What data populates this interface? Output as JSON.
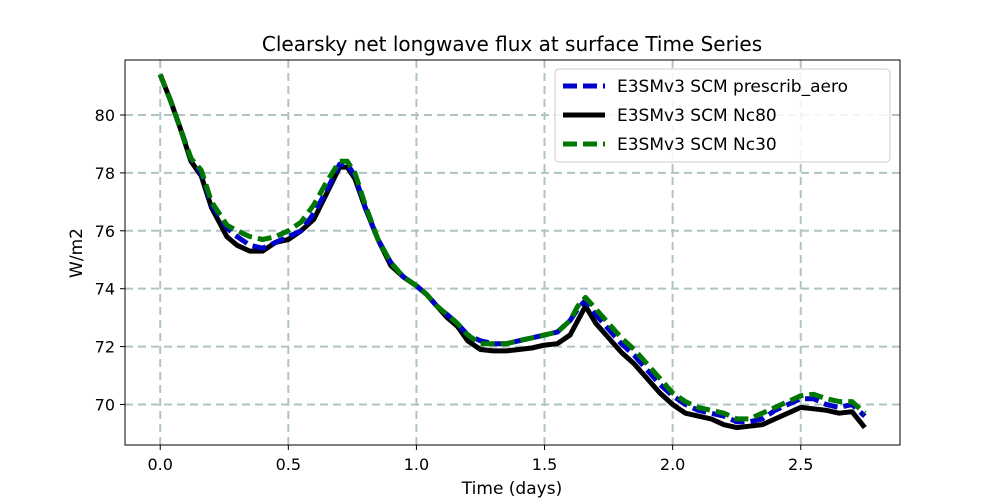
{
  "chart_data": {
    "type": "line",
    "title": "Clearsky net longwave flux at surface Time Series",
    "xlabel": "Time (days)",
    "ylabel": "W/m2",
    "xlim": [
      -0.1375,
      2.8875
    ],
    "ylim": [
      68.6,
      81.9
    ],
    "xticks": [
      0.0,
      0.5,
      1.0,
      1.5,
      2.0,
      2.5
    ],
    "xtick_labels": [
      "0.0",
      "0.5",
      "1.0",
      "1.5",
      "2.0",
      "2.5"
    ],
    "yticks": [
      70,
      72,
      74,
      76,
      78,
      80
    ],
    "ytick_labels": [
      "70",
      "72",
      "74",
      "76",
      "78",
      "80"
    ],
    "grid": true,
    "legend_position": "top-right",
    "colors": {
      "prescrib": "#0000cc",
      "nc80": "#000000",
      "nc30": "#007700",
      "grid": "#b0c4c4"
    },
    "series": [
      {
        "name": "E3SMv3 SCM prescrib_aero",
        "style": "dashed",
        "color": "#0000cc",
        "x": [
          0.0,
          0.04,
          0.08,
          0.12,
          0.16,
          0.2,
          0.23,
          0.26,
          0.3,
          0.35,
          0.4,
          0.45,
          0.5,
          0.55,
          0.6,
          0.65,
          0.7,
          0.73,
          0.76,
          0.8,
          0.85,
          0.9,
          0.95,
          1.0,
          1.04,
          1.08,
          1.12,
          1.16,
          1.2,
          1.25,
          1.3,
          1.35,
          1.4,
          1.45,
          1.5,
          1.55,
          1.6,
          1.63,
          1.66,
          1.7,
          1.75,
          1.8,
          1.85,
          1.9,
          1.95,
          2.0,
          2.05,
          2.1,
          2.15,
          2.2,
          2.25,
          2.3,
          2.35,
          2.4,
          2.45,
          2.5,
          2.55,
          2.6,
          2.65,
          2.7,
          2.75
        ],
        "values": [
          81.4,
          80.5,
          79.5,
          78.5,
          78.0,
          76.9,
          76.5,
          76.1,
          75.8,
          75.5,
          75.4,
          75.6,
          75.8,
          76.0,
          76.6,
          77.4,
          78.3,
          78.3,
          77.9,
          76.8,
          75.7,
          74.9,
          74.4,
          74.1,
          73.8,
          73.4,
          73.1,
          72.8,
          72.4,
          72.2,
          72.1,
          72.1,
          72.2,
          72.3,
          72.4,
          72.5,
          72.9,
          73.3,
          73.6,
          73.1,
          72.6,
          72.1,
          71.7,
          71.2,
          70.7,
          70.3,
          70.0,
          69.8,
          69.7,
          69.6,
          69.4,
          69.4,
          69.5,
          69.8,
          70.0,
          70.2,
          70.2,
          70.0,
          69.9,
          70.0,
          69.6
        ]
      },
      {
        "name": "E3SMv3 SCM Nc80",
        "style": "solid",
        "color": "#000000",
        "x": [
          0.0,
          0.04,
          0.08,
          0.12,
          0.16,
          0.2,
          0.23,
          0.26,
          0.3,
          0.35,
          0.4,
          0.45,
          0.5,
          0.55,
          0.6,
          0.65,
          0.7,
          0.73,
          0.76,
          0.8,
          0.85,
          0.9,
          0.95,
          1.0,
          1.04,
          1.08,
          1.12,
          1.16,
          1.2,
          1.25,
          1.3,
          1.35,
          1.4,
          1.45,
          1.5,
          1.55,
          1.6,
          1.63,
          1.66,
          1.7,
          1.75,
          1.8,
          1.85,
          1.9,
          1.95,
          2.0,
          2.05,
          2.1,
          2.15,
          2.2,
          2.25,
          2.3,
          2.35,
          2.4,
          2.45,
          2.5,
          2.55,
          2.6,
          2.65,
          2.7,
          2.75
        ],
        "values": [
          81.4,
          80.5,
          79.5,
          78.4,
          77.9,
          76.8,
          76.3,
          75.8,
          75.5,
          75.3,
          75.3,
          75.6,
          75.7,
          76.0,
          76.4,
          77.3,
          78.2,
          78.2,
          77.8,
          76.8,
          75.7,
          74.8,
          74.4,
          74.1,
          73.8,
          73.4,
          73.0,
          72.7,
          72.2,
          71.9,
          71.85,
          71.85,
          71.9,
          71.95,
          72.05,
          72.1,
          72.4,
          72.9,
          73.4,
          72.8,
          72.3,
          71.8,
          71.4,
          70.9,
          70.4,
          70.0,
          69.7,
          69.6,
          69.5,
          69.3,
          69.2,
          69.25,
          69.3,
          69.5,
          69.7,
          69.9,
          69.85,
          69.8,
          69.7,
          69.75,
          69.2
        ]
      },
      {
        "name": "E3SMv3 SCM Nc30",
        "style": "dashed",
        "color": "#007700",
        "x": [
          0.0,
          0.04,
          0.08,
          0.12,
          0.16,
          0.2,
          0.23,
          0.26,
          0.3,
          0.35,
          0.4,
          0.45,
          0.5,
          0.55,
          0.6,
          0.65,
          0.7,
          0.73,
          0.76,
          0.8,
          0.85,
          0.9,
          0.95,
          1.0,
          1.04,
          1.08,
          1.12,
          1.16,
          1.2,
          1.25,
          1.3,
          1.35,
          1.4,
          1.45,
          1.5,
          1.55,
          1.6,
          1.63,
          1.66,
          1.7,
          1.75,
          1.8,
          1.85,
          1.9,
          1.95,
          2.0,
          2.05,
          2.1,
          2.15,
          2.2,
          2.25,
          2.3,
          2.35,
          2.4,
          2.45,
          2.5,
          2.55,
          2.6,
          2.65,
          2.7,
          2.75
        ],
        "values": [
          81.4,
          80.5,
          79.5,
          78.5,
          78.1,
          77.0,
          76.6,
          76.2,
          76.0,
          75.8,
          75.7,
          75.8,
          76.0,
          76.3,
          76.9,
          77.7,
          78.4,
          78.4,
          78.0,
          76.9,
          75.7,
          74.9,
          74.4,
          74.1,
          73.8,
          73.4,
          73.1,
          72.8,
          72.4,
          72.1,
          72.1,
          72.1,
          72.2,
          72.3,
          72.4,
          72.5,
          72.9,
          73.4,
          73.7,
          73.3,
          72.8,
          72.3,
          71.9,
          71.4,
          70.9,
          70.4,
          70.1,
          69.9,
          69.8,
          69.7,
          69.5,
          69.5,
          69.7,
          69.9,
          70.1,
          70.3,
          70.35,
          70.2,
          70.1,
          70.1,
          69.7
        ]
      }
    ]
  }
}
